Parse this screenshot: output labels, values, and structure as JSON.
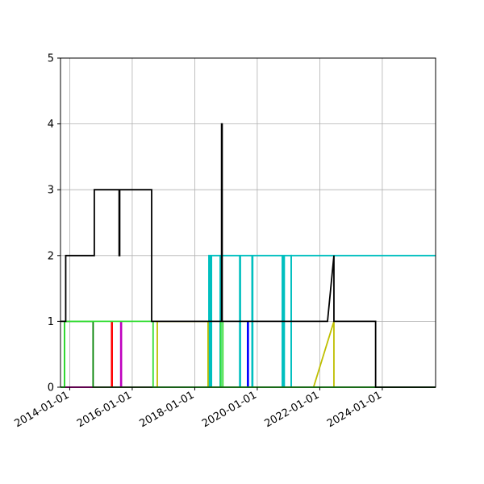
{
  "chart_data": {
    "type": "line",
    "title": "",
    "xlabel": "",
    "ylabel": "",
    "x_type": "date",
    "xlim": [
      "2013-09-15",
      "2025-09-15"
    ],
    "ylim": [
      0,
      5
    ],
    "grid": true,
    "legend": "none",
    "x_ticks": [
      "2014-01-01",
      "2016-01-01",
      "2018-01-01",
      "2020-01-01",
      "2022-01-01",
      "2024-01-01"
    ],
    "y_ticks": [
      0,
      1,
      2,
      3,
      4,
      5
    ],
    "series": [
      {
        "color": "#00bfbf",
        "x": [
          "2013-09-15",
          "2018-06-15",
          "2018-06-15",
          "2018-06-22",
          "2018-06-22",
          "2018-07-01",
          "2018-07-01",
          "2018-07-08",
          "2018-07-08",
          "2018-07-15",
          "2018-07-15",
          "2018-10-25",
          "2018-10-25",
          "2018-11-02",
          "2018-11-02",
          "2019-06-10",
          "2019-06-10",
          "2019-06-18",
          "2019-06-18",
          "2019-11-01",
          "2019-11-01",
          "2019-11-09",
          "2019-11-09",
          "2020-10-20",
          "2020-10-20",
          "2020-10-28",
          "2020-10-28",
          "2020-11-05",
          "2020-11-05",
          "2020-11-12",
          "2020-11-12",
          "2021-02-01",
          "2021-02-01",
          "2025-09-15"
        ],
        "values": [
          0,
          0,
          2,
          2,
          0,
          0,
          2,
          2,
          0,
          0,
          2,
          2,
          0,
          0,
          2,
          2,
          0,
          0,
          2,
          2,
          0,
          0,
          2,
          2,
          0,
          0,
          2,
          2,
          0,
          0,
          2,
          2,
          0,
          0
        ]
      },
      {
        "color": "#00bfbf",
        "x": [
          "2021-02-01",
          "2021-02-01",
          "2025-09-15"
        ],
        "values": [
          0,
          2,
          2
        ]
      },
      {
        "color": "#bfbf00",
        "x": [
          "2013-09-15",
          "2016-10-20",
          "2016-10-20",
          "2017-01-01",
          "2018-06-05",
          "2018-06-05",
          "2018-06-10",
          "2018-06-10",
          "2021-10-20",
          "2022-06-15",
          "2022-06-15",
          "2025-09-15"
        ],
        "values": [
          0,
          0,
          1,
          1,
          1,
          0,
          0,
          0,
          0,
          1,
          0,
          0
        ]
      },
      {
        "color": "#0000ff",
        "x": [
          "2013-09-15",
          "2019-09-10",
          "2019-09-10",
          "2019-09-18",
          "2019-09-18",
          "2025-09-15"
        ],
        "values": [
          0,
          0,
          1,
          1,
          0,
          0
        ]
      },
      {
        "color": "#ff0000",
        "x": [
          "2013-09-15",
          "2015-05-05",
          "2015-05-05",
          "2015-05-12",
          "2015-05-12",
          "2025-09-15"
        ],
        "values": [
          0,
          0,
          1,
          1,
          0,
          0
        ]
      },
      {
        "color": "#bf00bf",
        "x": [
          "2013-09-15",
          "2015-08-20",
          "2015-08-20",
          "2015-08-28",
          "2015-08-28",
          "2025-09-15"
        ],
        "values": [
          0,
          0,
          1,
          1,
          0,
          0
        ]
      },
      {
        "color": "#008000",
        "x": [
          "2013-09-15",
          "2013-11-01",
          "2013-11-01",
          "2014-10-01",
          "2014-10-01",
          "2025-09-15"
        ],
        "values": [
          0,
          0,
          1,
          1,
          0,
          0
        ]
      },
      {
        "color": "#33dd33",
        "x": [
          "2013-09-15",
          "2013-11-01",
          "2013-11-01",
          "2016-09-01",
          "2016-09-01",
          "2025-09-15"
        ],
        "values": [
          0,
          0,
          1,
          1,
          0,
          0
        ]
      },
      {
        "color": "#33dd33",
        "x": [
          "2018-11-01",
          "2018-11-01",
          "2018-11-25",
          "2018-11-25",
          "2025-09-15"
        ],
        "values": [
          0,
          1,
          1,
          0,
          0
        ]
      },
      {
        "color": "#000000",
        "x": [
          "2013-09-15",
          "2013-11-15",
          "2013-11-15",
          "2014-10-15",
          "2014-10-15",
          "2015-08-01",
          "2015-08-01",
          "2015-08-08",
          "2015-08-08",
          "2015-08-15",
          "2015-08-15",
          "2016-08-15",
          "2016-08-15",
          "2018-11-10",
          "2018-11-10",
          "2018-11-17",
          "2018-11-17",
          "2018-11-24",
          "2018-11-24",
          "2022-04-01",
          "2022-06-15",
          "2022-06-15",
          "2023-10-15",
          "2023-10-15",
          "2025-09-15"
        ],
        "values": [
          1,
          1,
          2,
          2,
          3,
          3,
          2,
          2,
          3,
          3,
          3,
          3,
          1,
          1,
          4,
          4,
          1,
          1,
          1,
          1,
          2,
          1,
          1,
          0,
          0
        ]
      }
    ]
  }
}
